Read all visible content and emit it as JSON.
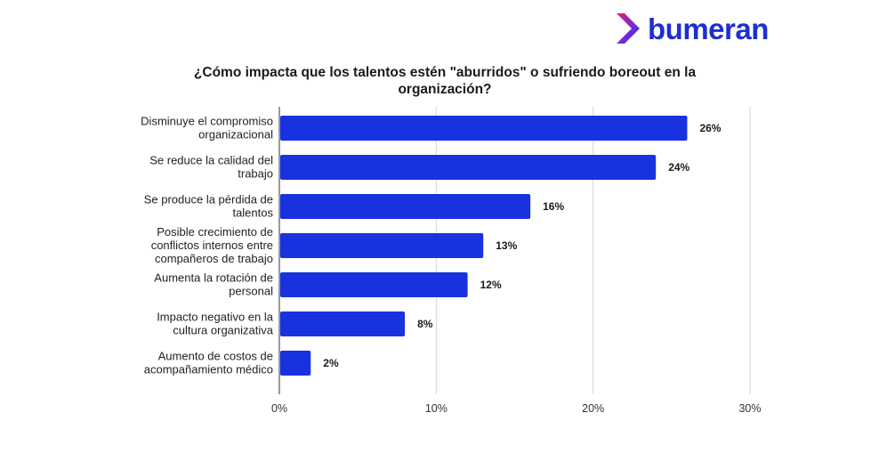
{
  "brand": {
    "name": "bumeran",
    "color": "#1f2fcf"
  },
  "chart_data": {
    "type": "bar",
    "orientation": "horizontal",
    "title": "¿Cómo impacta que los talentos estén \"aburridos\" o sufriendo boreout en la organización?",
    "categories": [
      [
        "Disminuye el compromiso",
        "organizacional"
      ],
      [
        "Se reduce la calidad del",
        "trabajo"
      ],
      [
        "Se produce la pérdida de",
        "talentos"
      ],
      [
        "Posible crecimiento de",
        "conflictos internos entre",
        "compañeros de trabajo"
      ],
      [
        "Aumenta la rotación de",
        "personal"
      ],
      [
        "Impacto negativo en la",
        "cultura organizativa"
      ],
      [
        "Aumento de costos de",
        "acompañamiento médico"
      ]
    ],
    "values": [
      26,
      24,
      16,
      13,
      12,
      8,
      2
    ],
    "value_labels": [
      "26%",
      "24%",
      "16%",
      "13%",
      "12%",
      "8%",
      "2%"
    ],
    "xlim": [
      0,
      30
    ],
    "xticks": [
      0,
      10,
      20,
      30
    ],
    "xtick_labels": [
      "0%",
      "10%",
      "20%",
      "30%"
    ],
    "bar_color": "#1932e0",
    "grid": true,
    "xlabel": "",
    "ylabel": ""
  }
}
